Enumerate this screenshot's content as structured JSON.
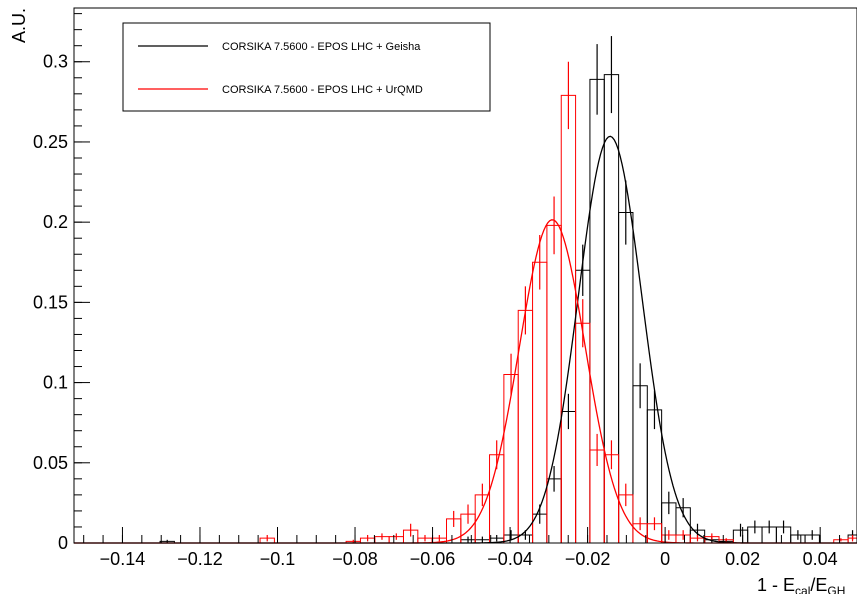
{
  "chart_data": {
    "type": "histogram",
    "title": "",
    "xlabel": {
      "prefix": "1 - E",
      "sub1": "cal",
      "mid": "/E",
      "sub2": "GH"
    },
    "ylabel": "A.U.",
    "xlim": [
      -0.1525,
      0.0495
    ],
    "ylim": [
      0,
      0.3335
    ],
    "bin_width": 0.0037,
    "x_ticks": [
      {
        "value": -0.14,
        "label": "−0.14"
      },
      {
        "value": -0.12,
        "label": "−0.12"
      },
      {
        "value": -0.1,
        "label": "−0.1"
      },
      {
        "value": -0.08,
        "label": "−0.08"
      },
      {
        "value": -0.06,
        "label": "−0.06"
      },
      {
        "value": -0.04,
        "label": "−0.04"
      },
      {
        "value": -0.02,
        "label": "−0.02"
      },
      {
        "value": 0,
        "label": "0"
      },
      {
        "value": 0.02,
        "label": "0.02"
      },
      {
        "value": 0.04,
        "label": "0.04"
      }
    ],
    "y_ticks": [
      {
        "value": 0,
        "label": "0"
      },
      {
        "value": 0.05,
        "label": "0.05"
      },
      {
        "value": 0.1,
        "label": "0.1"
      },
      {
        "value": 0.15,
        "label": "0.15"
      },
      {
        "value": 0.2,
        "label": "0.2"
      },
      {
        "value": 0.25,
        "label": "0.25"
      },
      {
        "value": 0.3,
        "label": "0.3"
      }
    ],
    "legend_position": "top-left",
    "series": [
      {
        "name": "CORSIKA 7.5600 - EPOS LHC + Geisha",
        "color": "#000000",
        "bins": [
          {
            "lo": -0.1303,
            "hi": -0.1266,
            "y": 0.001,
            "err": 0.001
          },
          {
            "lo": -0.0527,
            "hi": -0.049,
            "y": 0.002,
            "err": 0.002
          },
          {
            "lo": -0.049,
            "hi": -0.0453,
            "y": 0.002,
            "err": 0.002
          },
          {
            "lo": -0.0453,
            "hi": -0.0416,
            "y": 0.003,
            "err": 0.002
          },
          {
            "lo": -0.0416,
            "hi": -0.0379,
            "y": 0.005,
            "err": 0.003
          },
          {
            "lo": -0.0379,
            "hi": -0.0342,
            "y": 0.005,
            "err": 0.003
          },
          {
            "lo": -0.0342,
            "hi": -0.0305,
            "y": 0.018,
            "err": 0.006
          },
          {
            "lo": -0.0305,
            "hi": -0.0268,
            "y": 0.04,
            "err": 0.008
          },
          {
            "lo": -0.0268,
            "hi": -0.0231,
            "y": 0.082,
            "err": 0.011
          },
          {
            "lo": -0.0231,
            "hi": -0.0194,
            "y": 0.17,
            "err": 0.016
          },
          {
            "lo": -0.0194,
            "hi": -0.0157,
            "y": 0.289,
            "err": 0.022
          },
          {
            "lo": -0.0157,
            "hi": -0.012,
            "y": 0.292,
            "err": 0.024
          },
          {
            "lo": -0.012,
            "hi": -0.0083,
            "y": 0.206,
            "err": 0.02
          },
          {
            "lo": -0.0083,
            "hi": -0.0046,
            "y": 0.098,
            "err": 0.014
          },
          {
            "lo": -0.0046,
            "hi": -0.0009,
            "y": 0.083,
            "err": 0.012
          },
          {
            "lo": -0.0009,
            "hi": 0.0028,
            "y": 0.025,
            "err": 0.007
          },
          {
            "lo": 0.0028,
            "hi": 0.0065,
            "y": 0.022,
            "err": 0.006
          },
          {
            "lo": 0.0065,
            "hi": 0.0102,
            "y": 0.008,
            "err": 0.004
          },
          {
            "lo": 0.0102,
            "hi": 0.0139,
            "y": 0.002,
            "err": 0.002
          },
          {
            "lo": 0.0139,
            "hi": 0.0176,
            "y": 0.001,
            "err": 0.001
          },
          {
            "lo": 0.0176,
            "hi": 0.0213,
            "y": 0.008,
            "err": 0.004
          },
          {
            "lo": 0.0213,
            "hi": 0.025,
            "y": 0.01,
            "err": 0.004
          },
          {
            "lo": 0.025,
            "hi": 0.0287,
            "y": 0.01,
            "err": 0.004
          },
          {
            "lo": 0.0287,
            "hi": 0.0324,
            "y": 0.01,
            "err": 0.004
          },
          {
            "lo": 0.0324,
            "hi": 0.0361,
            "y": 0.005,
            "err": 0.003
          },
          {
            "lo": 0.0361,
            "hi": 0.0398,
            "y": 0.005,
            "err": 0.003
          },
          {
            "lo": 0.0472,
            "hi": 0.0495,
            "y": 0.005,
            "err": 0.003
          }
        ],
        "fit": {
          "kind": "gaussian",
          "amplitude": 0.2535,
          "mean": -0.0142,
          "sigma": 0.0082
        }
      },
      {
        "name": "CORSIKA 7.5600 - EPOS LHC + UrQMD",
        "color": "#ff0000",
        "bins": [
          {
            "lo": -0.1045,
            "hi": -0.1008,
            "y": 0.003,
            "err": 0.002
          },
          {
            "lo": -0.0823,
            "hi": -0.0786,
            "y": 0.001,
            "err": 0.001
          },
          {
            "lo": -0.0786,
            "hi": -0.0749,
            "y": 0.003,
            "err": 0.002
          },
          {
            "lo": -0.0749,
            "hi": -0.0712,
            "y": 0.004,
            "err": 0.002
          },
          {
            "lo": -0.0712,
            "hi": -0.0675,
            "y": 0.004,
            "err": 0.002
          },
          {
            "lo": -0.0675,
            "hi": -0.0638,
            "y": 0.008,
            "err": 0.004
          },
          {
            "lo": -0.0638,
            "hi": -0.0601,
            "y": 0.003,
            "err": 0.002
          },
          {
            "lo": -0.0601,
            "hi": -0.0564,
            "y": 0.003,
            "err": 0.002
          },
          {
            "lo": -0.0564,
            "hi": -0.0527,
            "y": 0.015,
            "err": 0.005
          },
          {
            "lo": -0.0527,
            "hi": -0.049,
            "y": 0.018,
            "err": 0.006
          },
          {
            "lo": -0.049,
            "hi": -0.0453,
            "y": 0.03,
            "err": 0.007
          },
          {
            "lo": -0.0453,
            "hi": -0.0416,
            "y": 0.055,
            "err": 0.009
          },
          {
            "lo": -0.0416,
            "hi": -0.0379,
            "y": 0.105,
            "err": 0.013
          },
          {
            "lo": -0.0379,
            "hi": -0.0342,
            "y": 0.145,
            "err": 0.015
          },
          {
            "lo": -0.0342,
            "hi": -0.0305,
            "y": 0.175,
            "err": 0.017
          },
          {
            "lo": -0.0305,
            "hi": -0.0268,
            "y": 0.198,
            "err": 0.018
          },
          {
            "lo": -0.0268,
            "hi": -0.0231,
            "y": 0.279,
            "err": 0.021
          },
          {
            "lo": -0.0231,
            "hi": -0.0194,
            "y": 0.137,
            "err": 0.015
          },
          {
            "lo": -0.0194,
            "hi": -0.0157,
            "y": 0.058,
            "err": 0.01
          },
          {
            "lo": -0.0157,
            "hi": -0.012,
            "y": 0.055,
            "err": 0.009
          },
          {
            "lo": -0.012,
            "hi": -0.0083,
            "y": 0.03,
            "err": 0.007
          },
          {
            "lo": -0.0083,
            "hi": -0.0046,
            "y": 0.012,
            "err": 0.004
          },
          {
            "lo": -0.0046,
            "hi": -0.0009,
            "y": 0.012,
            "err": 0.004
          },
          {
            "lo": -0.0009,
            "hi": 0.0028,
            "y": 0.005,
            "err": 0.003
          },
          {
            "lo": 0.0028,
            "hi": 0.0065,
            "y": 0.005,
            "err": 0.003
          },
          {
            "lo": 0.0065,
            "hi": 0.0102,
            "y": 0.003,
            "err": 0.002
          },
          {
            "lo": 0.0102,
            "hi": 0.0139,
            "y": 0.004,
            "err": 0.002
          },
          {
            "lo": 0.0139,
            "hi": 0.0176,
            "y": 0.002,
            "err": 0.001
          },
          {
            "lo": 0.0435,
            "hi": 0.0472,
            "y": 0.002,
            "err": 0.001
          },
          {
            "lo": 0.0472,
            "hi": 0.0495,
            "y": 0.003,
            "err": 0.002
          }
        ],
        "fit": {
          "kind": "gaussian",
          "amplitude": 0.2015,
          "mean": -0.0291,
          "sigma": 0.0085
        }
      }
    ]
  }
}
